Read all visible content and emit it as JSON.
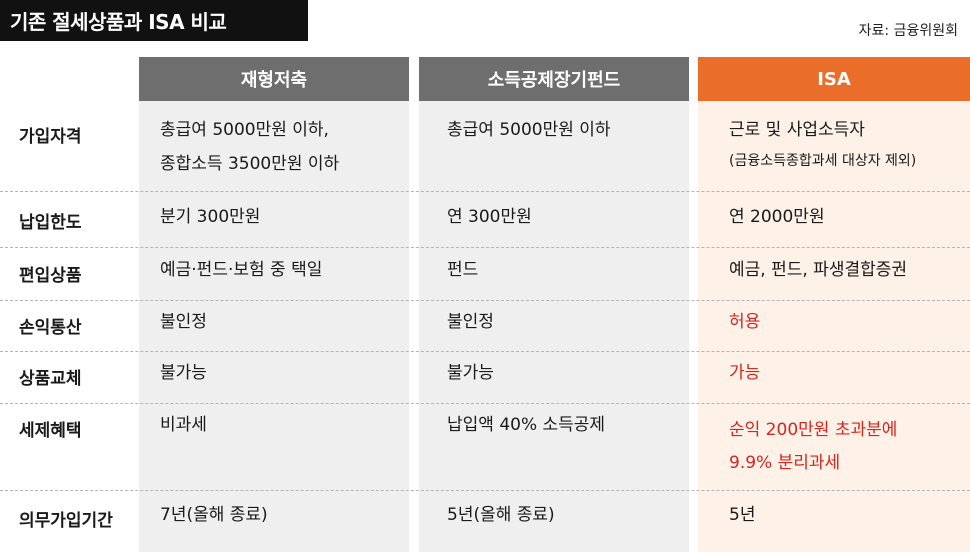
{
  "title": "기존 절세상품과 ISA 비교",
  "source": "자료: 금융위원회",
  "colors": {
    "header_gray": "#6e6e6e",
    "header_orange": "#ea6d2a",
    "highlight_red": "#d7261e"
  },
  "columns": [
    "재형저축",
    "소득공제장기펀드",
    "ISA"
  ],
  "rows": [
    {
      "label": "가입자격",
      "c1": [
        "총급여 5000만원 이하,",
        "종합소득 3500만원 이하"
      ],
      "c2": [
        "총급여 5000만원 이하"
      ],
      "c3": [
        "근로 및 사업소득자",
        "(금융소득종합과세 대상자 제외)"
      ]
    },
    {
      "label": "납입한도",
      "c1": [
        "분기 300만원"
      ],
      "c2": [
        "연 300만원"
      ],
      "c3": [
        "연 2000만원"
      ]
    },
    {
      "label": "편입상품",
      "c1": [
        "예금·펀드·보험 중 택일"
      ],
      "c2": [
        "펀드"
      ],
      "c3": [
        "예금, 펀드, 파생결합증권"
      ]
    },
    {
      "label": "손익통산",
      "c1": [
        "불인정"
      ],
      "c2": [
        "불인정"
      ],
      "c3": [
        "허용"
      ]
    },
    {
      "label": "상품교체",
      "c1": [
        "불가능"
      ],
      "c2": [
        "불가능"
      ],
      "c3": [
        "가능"
      ]
    },
    {
      "label": "세제혜택",
      "c1": [
        "비과세"
      ],
      "c2": [
        "납입액 40% 소득공제"
      ],
      "c3": [
        "순익 200만원 초과분에",
        "9.9% 분리과세"
      ]
    },
    {
      "label": "의무가입기간",
      "c1": [
        "7년(올해 종료)"
      ],
      "c2": [
        "5년(올해 종료)"
      ],
      "c3": [
        "5년"
      ]
    }
  ]
}
